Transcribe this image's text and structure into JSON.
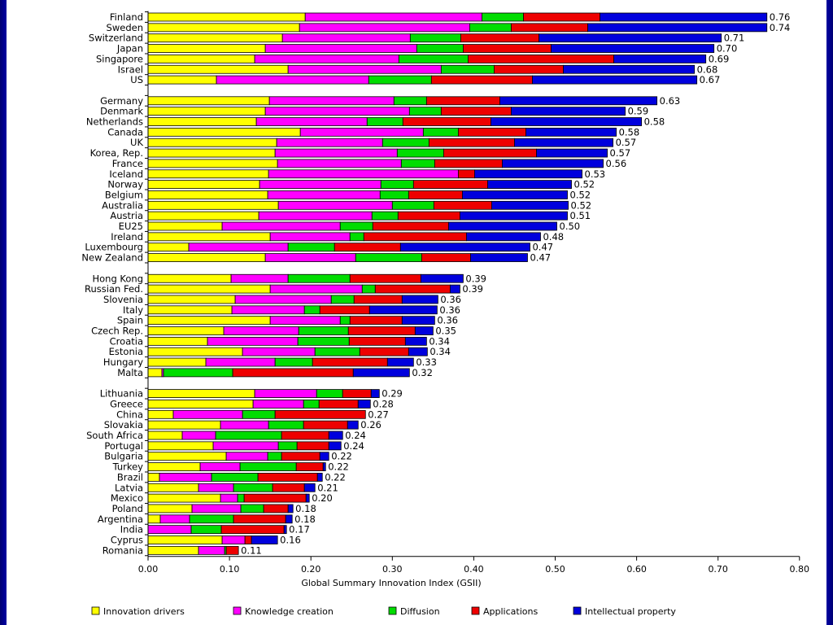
{
  "chart_data": {
    "type": "bar",
    "orientation": "horizontal",
    "stacked": true,
    "title": "",
    "xlabel": "Global Summary Innovation Index (GSII)",
    "ylabel": "",
    "xlim": [
      0,
      0.8
    ],
    "x_ticks": [
      "0.00",
      "0.10",
      "0.20",
      "0.30",
      "0.40",
      "0.50",
      "0.60",
      "0.70",
      "0.80"
    ],
    "legend_position": "bottom",
    "grid": false,
    "colors": {
      "Innovation drivers": "#ffff00",
      "Knowledge creation": "#ff00ff",
      "Diffusion": "#00dd00",
      "Applications": "#ee0000",
      "Intellectual property": "#0000dd"
    },
    "series_order": [
      "Innovation drivers",
      "Knowledge creation",
      "Diffusion",
      "Applications",
      "Intellectual property"
    ],
    "groups": [
      [
        {
          "country": "Finland",
          "total": "0.76",
          "segments": [
            0.193,
            0.217,
            0.051,
            0.094,
            0.205
          ]
        },
        {
          "country": "Sweden",
          "total": "0.74",
          "segments": [
            0.186,
            0.209,
            0.051,
            0.094,
            0.22
          ]
        },
        {
          "country": "Switzerland",
          "total": "0.71",
          "segments": [
            0.165,
            0.157,
            0.062,
            0.096,
            0.224
          ]
        },
        {
          "country": "Japan",
          "total": "0.70",
          "segments": [
            0.144,
            0.186,
            0.057,
            0.108,
            0.2
          ]
        },
        {
          "country": "Singapore",
          "total": "0.69",
          "segments": [
            0.131,
            0.177,
            0.085,
            0.179,
            0.113
          ]
        },
        {
          "country": "Israel",
          "total": "0.68",
          "segments": [
            0.172,
            0.188,
            0.065,
            0.085,
            0.161
          ]
        },
        {
          "country": "US",
          "total": "0.67",
          "segments": [
            0.084,
            0.187,
            0.077,
            0.124,
            0.202
          ]
        }
      ],
      [
        {
          "country": "Germany",
          "total": "0.63",
          "segments": [
            0.149,
            0.153,
            0.04,
            0.09,
            0.193
          ]
        },
        {
          "country": "Denmark",
          "total": "0.59",
          "segments": [
            0.144,
            0.177,
            0.039,
            0.086,
            0.14
          ]
        },
        {
          "country": "Netherlands",
          "total": "0.58",
          "segments": [
            0.133,
            0.136,
            0.044,
            0.108,
            0.185
          ]
        },
        {
          "country": "Canada",
          "total": "0.58",
          "segments": [
            0.187,
            0.151,
            0.043,
            0.083,
            0.111
          ]
        },
        {
          "country": "UK",
          "total": "0.57",
          "segments": [
            0.158,
            0.13,
            0.057,
            0.105,
            0.121
          ]
        },
        {
          "country": "Korea, Rep.",
          "total": "0.57",
          "segments": [
            0.156,
            0.15,
            0.057,
            0.114,
            0.087
          ]
        },
        {
          "country": "France",
          "total": "0.56",
          "segments": [
            0.159,
            0.152,
            0.041,
            0.083,
            0.124
          ]
        },
        {
          "country": "Iceland",
          "total": "0.53",
          "segments": [
            0.148,
            0.233,
            0.0,
            0.02,
            0.132
          ]
        },
        {
          "country": "Norway",
          "total": "0.52",
          "segments": [
            0.137,
            0.149,
            0.04,
            0.091,
            0.103
          ]
        },
        {
          "country": "Belgium",
          "total": "0.52",
          "segments": [
            0.147,
            0.138,
            0.035,
            0.066,
            0.129
          ]
        },
        {
          "country": "Australia",
          "total": "0.52",
          "segments": [
            0.16,
            0.14,
            0.051,
            0.071,
            0.094
          ]
        },
        {
          "country": "Austria",
          "total": "0.51",
          "segments": [
            0.136,
            0.139,
            0.032,
            0.076,
            0.132
          ]
        },
        {
          "country": "EU25",
          "total": "0.50",
          "segments": [
            0.091,
            0.145,
            0.04,
            0.093,
            0.133
          ]
        },
        {
          "country": "Ireland",
          "total": "0.48",
          "segments": [
            0.15,
            0.098,
            0.017,
            0.126,
            0.091
          ]
        },
        {
          "country": "Luxembourg",
          "total": "0.47",
          "segments": [
            0.05,
            0.122,
            0.057,
            0.081,
            0.159
          ]
        },
        {
          "country": "New Zealand",
          "total": "0.47",
          "segments": [
            0.144,
            0.111,
            0.081,
            0.06,
            0.07
          ]
        }
      ],
      [
        {
          "country": "Hong Kong",
          "total": "0.39",
          "segments": [
            0.102,
            0.07,
            0.076,
            0.087,
            0.052
          ]
        },
        {
          "country": "Russian Fed.",
          "total": "0.39",
          "segments": [
            0.15,
            0.113,
            0.016,
            0.092,
            0.012
          ]
        },
        {
          "country": "Slovenia",
          "total": "0.36",
          "segments": [
            0.107,
            0.118,
            0.028,
            0.059,
            0.044
          ]
        },
        {
          "country": "Italy",
          "total": "0.36",
          "segments": [
            0.103,
            0.089,
            0.019,
            0.061,
            0.083
          ]
        },
        {
          "country": "Spain",
          "total": "0.36",
          "segments": [
            0.15,
            0.086,
            0.012,
            0.064,
            0.04
          ]
        },
        {
          "country": "Czech Rep.",
          "total": "0.35",
          "segments": [
            0.093,
            0.092,
            0.061,
            0.082,
            0.022
          ]
        },
        {
          "country": "Croatia",
          "total": "0.34",
          "segments": [
            0.073,
            0.111,
            0.063,
            0.069,
            0.026
          ]
        },
        {
          "country": "Estonia",
          "total": "0.34",
          "segments": [
            0.116,
            0.089,
            0.055,
            0.06,
            0.023
          ]
        },
        {
          "country": "Hungary",
          "total": "0.33",
          "segments": [
            0.071,
            0.085,
            0.046,
            0.092,
            0.032
          ]
        },
        {
          "country": "Malta",
          "total": "0.32",
          "segments": [
            0.017,
            0.002,
            0.085,
            0.148,
            0.069
          ]
        }
      ],
      [
        {
          "country": "Lithuania",
          "total": "0.29",
          "segments": [
            0.131,
            0.076,
            0.032,
            0.035,
            0.01
          ]
        },
        {
          "country": "Greece",
          "total": "0.28",
          "segments": [
            0.129,
            0.062,
            0.019,
            0.048,
            0.015
          ]
        },
        {
          "country": "China",
          "total": "0.27",
          "segments": [
            0.031,
            0.085,
            0.04,
            0.111,
            0.0
          ]
        },
        {
          "country": "Slovakia",
          "total": "0.26",
          "segments": [
            0.089,
            0.059,
            0.043,
            0.054,
            0.013
          ]
        },
        {
          "country": "South Africa",
          "total": "0.24",
          "segments": [
            0.042,
            0.041,
            0.081,
            0.058,
            0.017
          ]
        },
        {
          "country": "Portugal",
          "total": "0.24",
          "segments": [
            0.08,
            0.08,
            0.023,
            0.039,
            0.015
          ]
        },
        {
          "country": "Bulgaria",
          "total": "0.22",
          "segments": [
            0.096,
            0.051,
            0.017,
            0.047,
            0.011
          ]
        },
        {
          "country": "Turkey",
          "total": "0.22",
          "segments": [
            0.064,
            0.049,
            0.069,
            0.033,
            0.003
          ]
        },
        {
          "country": "Brazil",
          "total": "0.22",
          "segments": [
            0.014,
            0.064,
            0.057,
            0.073,
            0.006
          ]
        },
        {
          "country": "Latvia",
          "total": "0.21",
          "segments": [
            0.062,
            0.043,
            0.048,
            0.039,
            0.013
          ]
        },
        {
          "country": "Mexico",
          "total": "0.20",
          "segments": [
            0.089,
            0.021,
            0.008,
            0.076,
            0.004
          ]
        },
        {
          "country": "Poland",
          "total": "0.18",
          "segments": [
            0.054,
            0.06,
            0.028,
            0.03,
            0.006
          ]
        },
        {
          "country": "Argentina",
          "total": "0.18",
          "segments": [
            0.015,
            0.036,
            0.054,
            0.064,
            0.008
          ]
        },
        {
          "country": "India",
          "total": "0.17",
          "segments": [
            0.0,
            0.053,
            0.037,
            0.077,
            0.003
          ]
        },
        {
          "country": "Cyprus",
          "total": "0.16",
          "segments": [
            0.091,
            0.028,
            0.0,
            0.008,
            0.032
          ]
        },
        {
          "country": "Romania",
          "total": "0.11",
          "segments": [
            0.062,
            0.032,
            0.002,
            0.015,
            0.0
          ]
        }
      ]
    ]
  }
}
